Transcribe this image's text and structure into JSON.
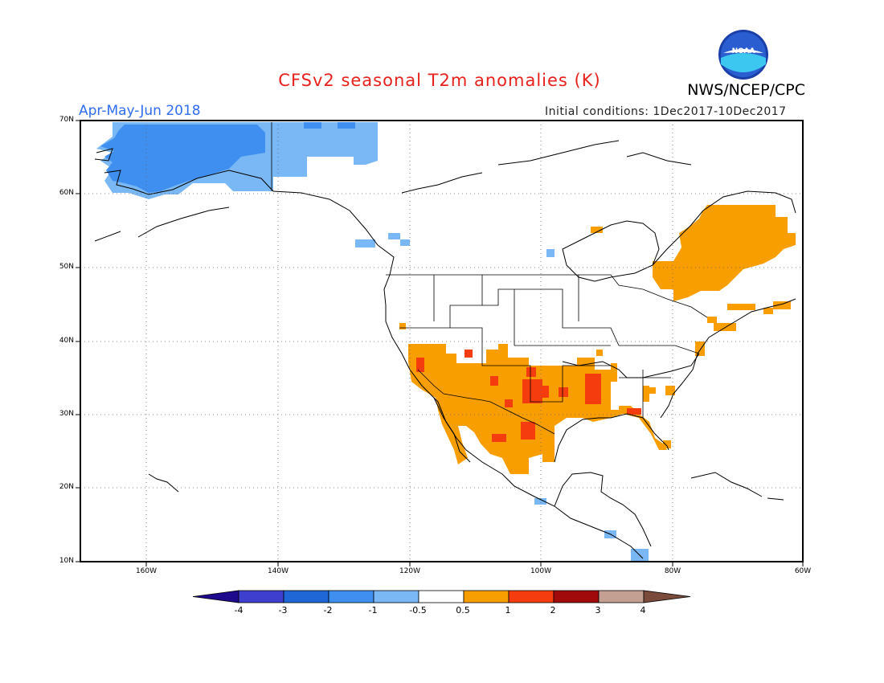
{
  "title": "CFSv2 seasonal T2m anomalies (K)",
  "organization": "NWS/NCEP/CPC",
  "logo_text": "NOAA",
  "period": "Apr-May-Jun 2018",
  "initial_conditions": "Initial conditions: 1Dec2017-10Dec2017",
  "lat_labels": [
    "70N",
    "60N",
    "50N",
    "40N",
    "30N",
    "20N",
    "10N"
  ],
  "lon_labels": [
    "160W",
    "140W",
    "120W",
    "100W",
    "80W",
    "60W"
  ],
  "colorbar": {
    "labels": [
      "-4",
      "-3",
      "-2",
      "-1",
      "-0.5",
      "0.5",
      "1",
      "2",
      "3",
      "4"
    ],
    "colors": [
      "#1e0a8c",
      "#3f3fcf",
      "#1f66d6",
      "#3e8fef",
      "#7ab8f5",
      "#ffffff",
      "#f99e00",
      "#f53c0e",
      "#a00a0a",
      "#c4a092",
      "#7a4a3a"
    ]
  },
  "chart_data": {
    "type": "heatmap",
    "title": "CFSv2 seasonal T2m anomalies (K)",
    "period": "Apr-May-Jun 2018",
    "units": "K",
    "extent": {
      "lon": [
        -170,
        -60
      ],
      "lat": [
        10,
        70
      ]
    },
    "grid_lines": "dotted every 20 deg lon and 10 deg lat",
    "anomaly_regions": [
      {
        "region": "Alaska / NW Canada (north)",
        "level": "-0.5 to -1",
        "color": "#7ab8f5"
      },
      {
        "region": "Western Alaska",
        "level": "-1 to -2",
        "color": "#3e8fef"
      },
      {
        "region": "Eastern Canada / Quebec / Labrador",
        "level": "0.5 to 1",
        "color": "#f99e00"
      },
      {
        "region": "Southwestern US and northern Mexico",
        "level": "0.5 to 1",
        "color": "#f99e00"
      },
      {
        "region": "Southern Plains (TX/OK) and lower Mississippi",
        "level": "1 to 2",
        "color": "#f53c0e"
      },
      {
        "region": "Gulf coast / Florida",
        "level": "0.5 to 1",
        "color": "#f99e00"
      }
    ]
  }
}
